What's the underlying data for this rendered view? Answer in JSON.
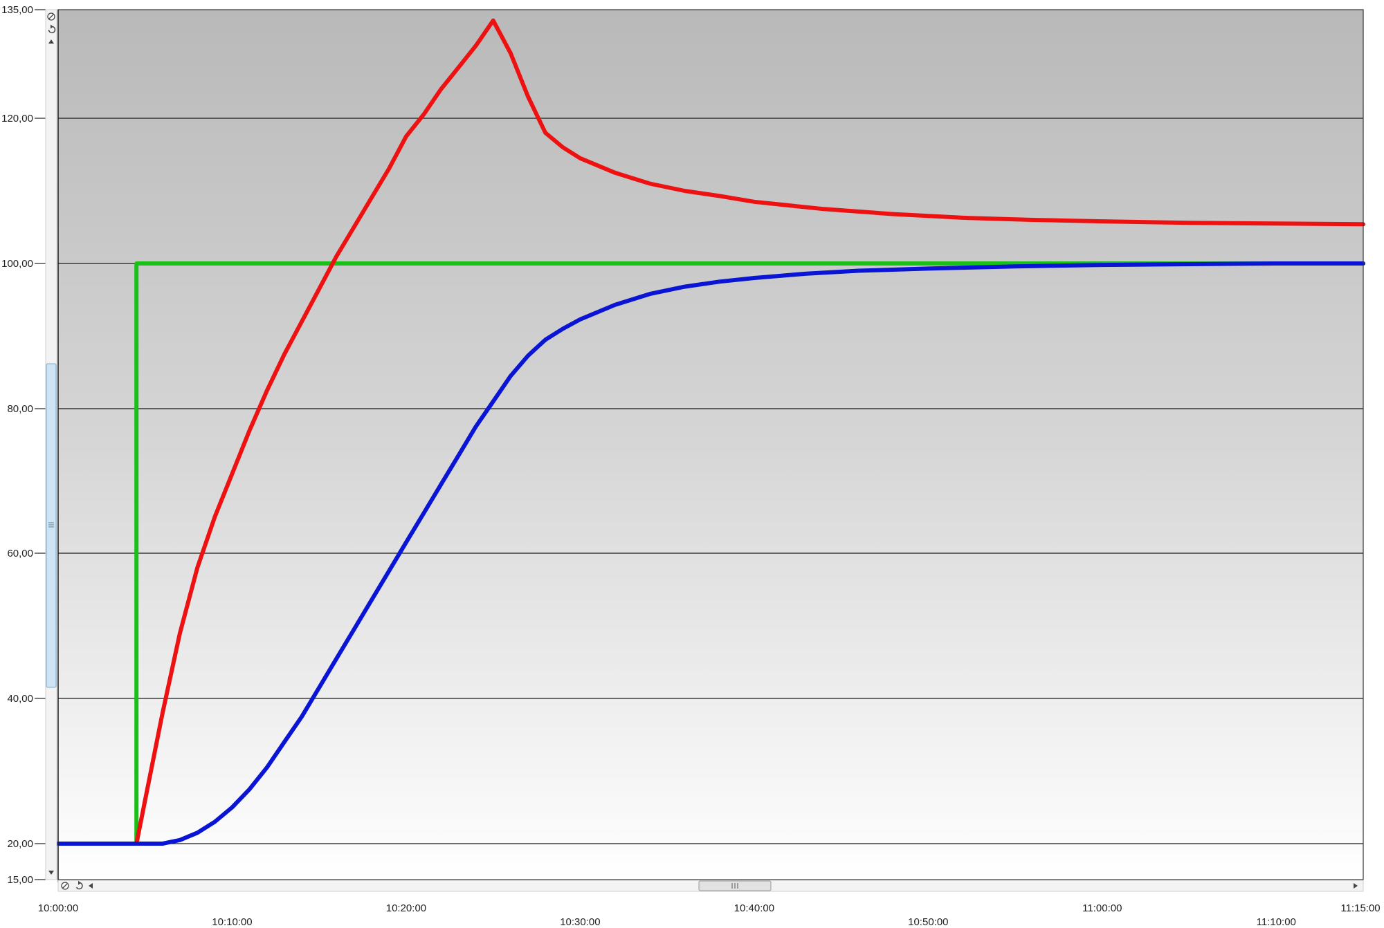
{
  "chart_data": {
    "type": "line",
    "title": "",
    "xlabel": "",
    "ylabel": "",
    "xlim": [
      "10:00:00",
      "11:15:00"
    ],
    "ylim": [
      15,
      135
    ],
    "grid": "horizontal",
    "background": "vertical gradient, grey at top to white at bottom",
    "y_ticks": [
      {
        "value": 135,
        "label": "135,00"
      },
      {
        "value": 120,
        "label": "120,00"
      },
      {
        "value": 100,
        "label": "100,00"
      },
      {
        "value": 80,
        "label": "80,00"
      },
      {
        "value": 60,
        "label": "60,00"
      },
      {
        "value": 40,
        "label": "40,00"
      },
      {
        "value": 20,
        "label": "20,00"
      },
      {
        "value": 15,
        "label": "15,00"
      }
    ],
    "x_ticks": [
      {
        "time": "10:00:00",
        "label": "10:00:00",
        "row": 0
      },
      {
        "time": "10:10:00",
        "label": "10:10:00",
        "row": 1
      },
      {
        "time": "10:20:00",
        "label": "10:20:00",
        "row": 0
      },
      {
        "time": "10:30:00",
        "label": "10:30:00",
        "row": 1
      },
      {
        "time": "10:40:00",
        "label": "10:40:00",
        "row": 0
      },
      {
        "time": "10:50:00",
        "label": "10:50:00",
        "row": 1
      },
      {
        "time": "11:00:00",
        "label": "11:00:00",
        "row": 0
      },
      {
        "time": "11:10:00",
        "label": "11:10:00",
        "row": 1
      },
      {
        "time": "11:15:00",
        "label": "11:15:00",
        "row": 0
      }
    ],
    "series": [
      {
        "color": "#18c018",
        "x": [
          "10:00:00",
          "10:04:30",
          "10:04:30",
          "11:15:00"
        ],
        "y": [
          20,
          20,
          100,
          100
        ]
      },
      {
        "color": "#ee1111",
        "x": [
          "10:00:00",
          "10:04:30",
          "10:05:00",
          "10:06:00",
          "10:07:00",
          "10:08:00",
          "10:09:00",
          "10:10:00",
          "10:11:00",
          "10:12:00",
          "10:13:00",
          "10:14:00",
          "10:15:00",
          "10:16:00",
          "10:17:00",
          "10:18:00",
          "10:19:00",
          "10:20:00",
          "10:21:00",
          "10:22:00",
          "10:23:00",
          "10:24:00",
          "10:25:00",
          "10:26:00",
          "10:27:00",
          "10:28:00",
          "10:29:00",
          "10:30:00",
          "10:32:00",
          "10:34:00",
          "10:36:00",
          "10:38:00",
          "10:40:00",
          "10:44:00",
          "10:48:00",
          "10:52:00",
          "10:56:00",
          "11:00:00",
          "11:05:00",
          "11:10:00",
          "11:15:00"
        ],
        "y": [
          20,
          20,
          26,
          38,
          49,
          58,
          65,
          71,
          77,
          82.5,
          87.5,
          92,
          96.5,
          101,
          105,
          109,
          113,
          117.5,
          120.5,
          124,
          127,
          130,
          133.5,
          129,
          123,
          118,
          116,
          114.5,
          112.5,
          111,
          110,
          109.3,
          108.5,
          107.5,
          106.8,
          106.3,
          106,
          105.8,
          105.6,
          105.5,
          105.4
        ]
      },
      {
        "color": "#0a14d4",
        "x": [
          "10:00:00",
          "10:06:00",
          "10:07:00",
          "10:08:00",
          "10:09:00",
          "10:10:00",
          "10:11:00",
          "10:12:00",
          "10:13:00",
          "10:14:00",
          "10:15:00",
          "10:16:00",
          "10:17:00",
          "10:18:00",
          "10:19:00",
          "10:20:00",
          "10:21:00",
          "10:22:00",
          "10:23:00",
          "10:24:00",
          "10:25:00",
          "10:26:00",
          "10:27:00",
          "10:28:00",
          "10:29:00",
          "10:30:00",
          "10:32:00",
          "10:34:00",
          "10:36:00",
          "10:38:00",
          "10:40:00",
          "10:43:00",
          "10:46:00",
          "10:50:00",
          "10:55:00",
          "11:00:00",
          "11:05:00",
          "11:10:00",
          "11:15:00"
        ],
        "y": [
          20,
          20,
          20.5,
          21.5,
          23,
          25,
          27.5,
          30.5,
          34,
          37.5,
          41.5,
          45.5,
          49.5,
          53.5,
          57.5,
          61.5,
          65.5,
          69.5,
          73.5,
          77.5,
          81,
          84.5,
          87.3,
          89.5,
          91,
          92.3,
          94.3,
          95.8,
          96.8,
          97.5,
          98,
          98.6,
          99,
          99.3,
          99.6,
          99.8,
          99.9,
          100,
          100
        ]
      }
    ]
  },
  "controls": {
    "zoom_reset_icon": "magnifier-reset-icon",
    "refresh_icon": "refresh-icon",
    "scroll_left_icon": "triangle-left-icon",
    "scroll_right_icon": "triangle-right-icon",
    "scroll_up_icon": "triangle-up-icon",
    "scroll_down_icon": "triangle-down-icon",
    "thumb_grip_icon": "grip-lines-icon"
  }
}
